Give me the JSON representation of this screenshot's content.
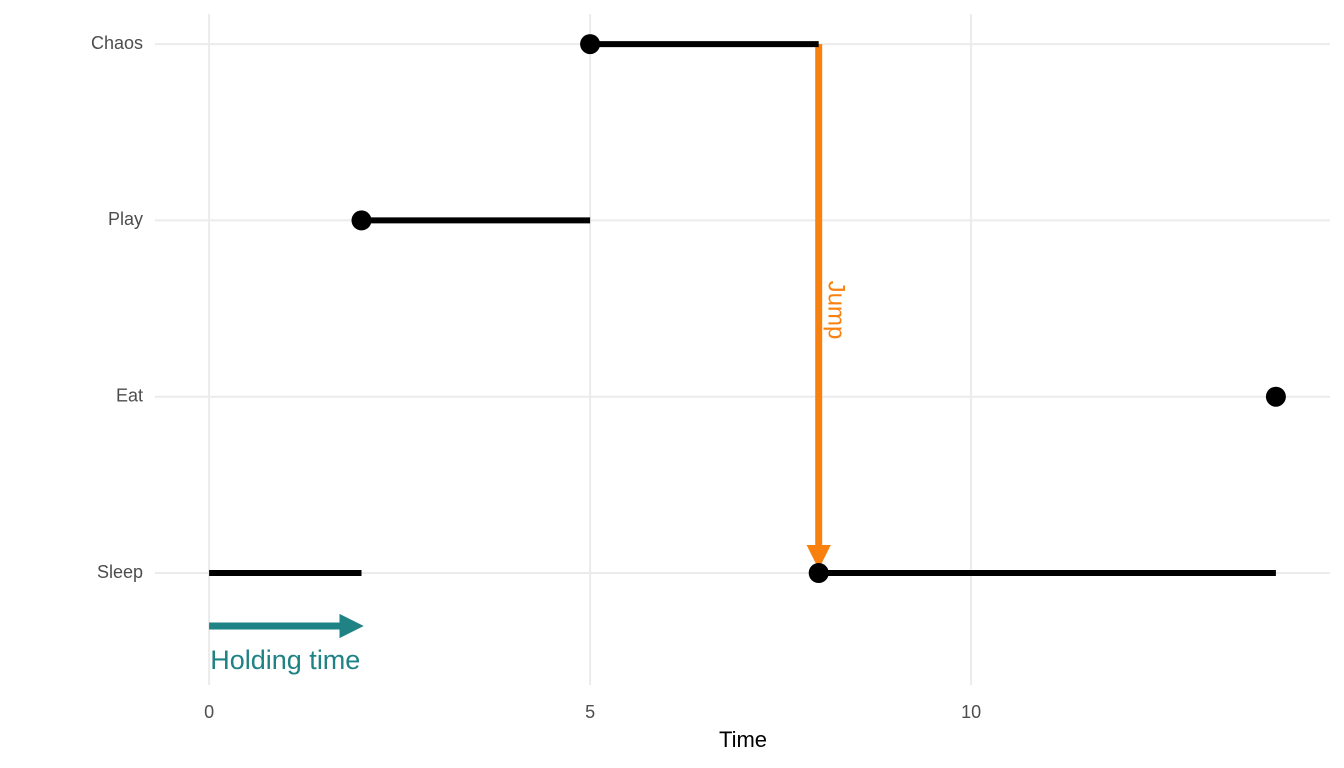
{
  "chart_data": {
    "type": "step",
    "x_label": "Time",
    "states": [
      "Sleep",
      "Eat",
      "Play",
      "Chaos"
    ],
    "x": [
      0,
      2,
      5,
      8,
      14
    ],
    "path": [
      "Sleep",
      "Play",
      "Chaos",
      "Sleep",
      "Eat"
    ],
    "xlim": [
      -0.71,
      14.71
    ],
    "xticks": [
      0,
      5,
      10
    ],
    "color": "#000000",
    "grid": true,
    "annotations": [
      {
        "text": "Jump",
        "color": "#f8800f"
      },
      {
        "text": "Holding time",
        "color": "#1f8285"
      }
    ]
  }
}
